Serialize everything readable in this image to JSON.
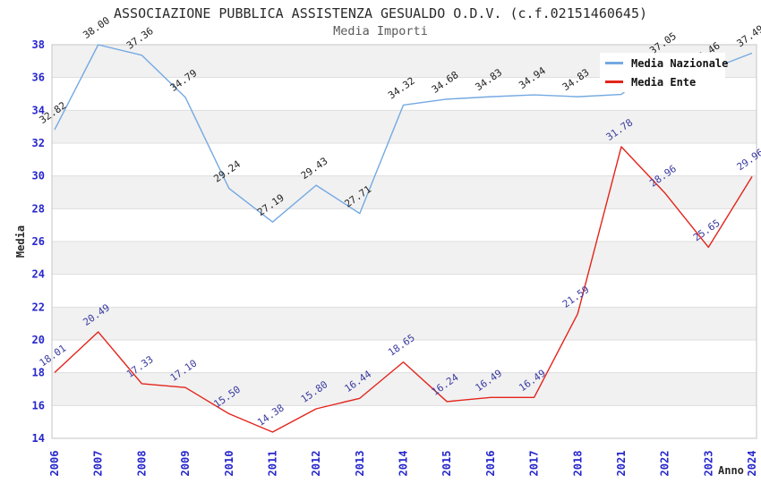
{
  "chart_data": {
    "type": "line",
    "title": "ASSOCIAZIONE PUBBLICA ASSISTENZA GESUALDO O.D.V. (c.f.02151460645)",
    "subtitle": "Media Importi",
    "xlabel": "Anno",
    "ylabel": "Media",
    "ylim": [
      14,
      38
    ],
    "ytick_step": 2,
    "grid": "horizontal-bands-alternating",
    "legend_position": "top-right",
    "axis_tick_color": "#2626cc",
    "band_color": "#f1f1f1",
    "categories": [
      "2006",
      "2007",
      "2008",
      "2009",
      "2010",
      "2011",
      "2012",
      "2013",
      "2014",
      "2015",
      "2016",
      "2017",
      "2018",
      "2021",
      "2022",
      "2023",
      "2024"
    ],
    "series": [
      {
        "name": "Media Nazionale",
        "color": "#74a9e2",
        "label_color": "#222222",
        "values": [
          32.82,
          38.0,
          37.36,
          34.79,
          29.24,
          27.19,
          29.43,
          27.71,
          34.32,
          34.68,
          34.83,
          34.94,
          34.83,
          34.97,
          37.05,
          36.46,
          37.49
        ]
      },
      {
        "name": "Media Ente",
        "color": "#e3241b",
        "label_color": "#3a3aa0",
        "values": [
          18.01,
          20.49,
          17.33,
          17.1,
          15.5,
          14.38,
          15.8,
          16.44,
          18.65,
          16.24,
          16.49,
          16.49,
          21.59,
          31.78,
          28.96,
          25.65,
          29.96
        ]
      }
    ]
  }
}
